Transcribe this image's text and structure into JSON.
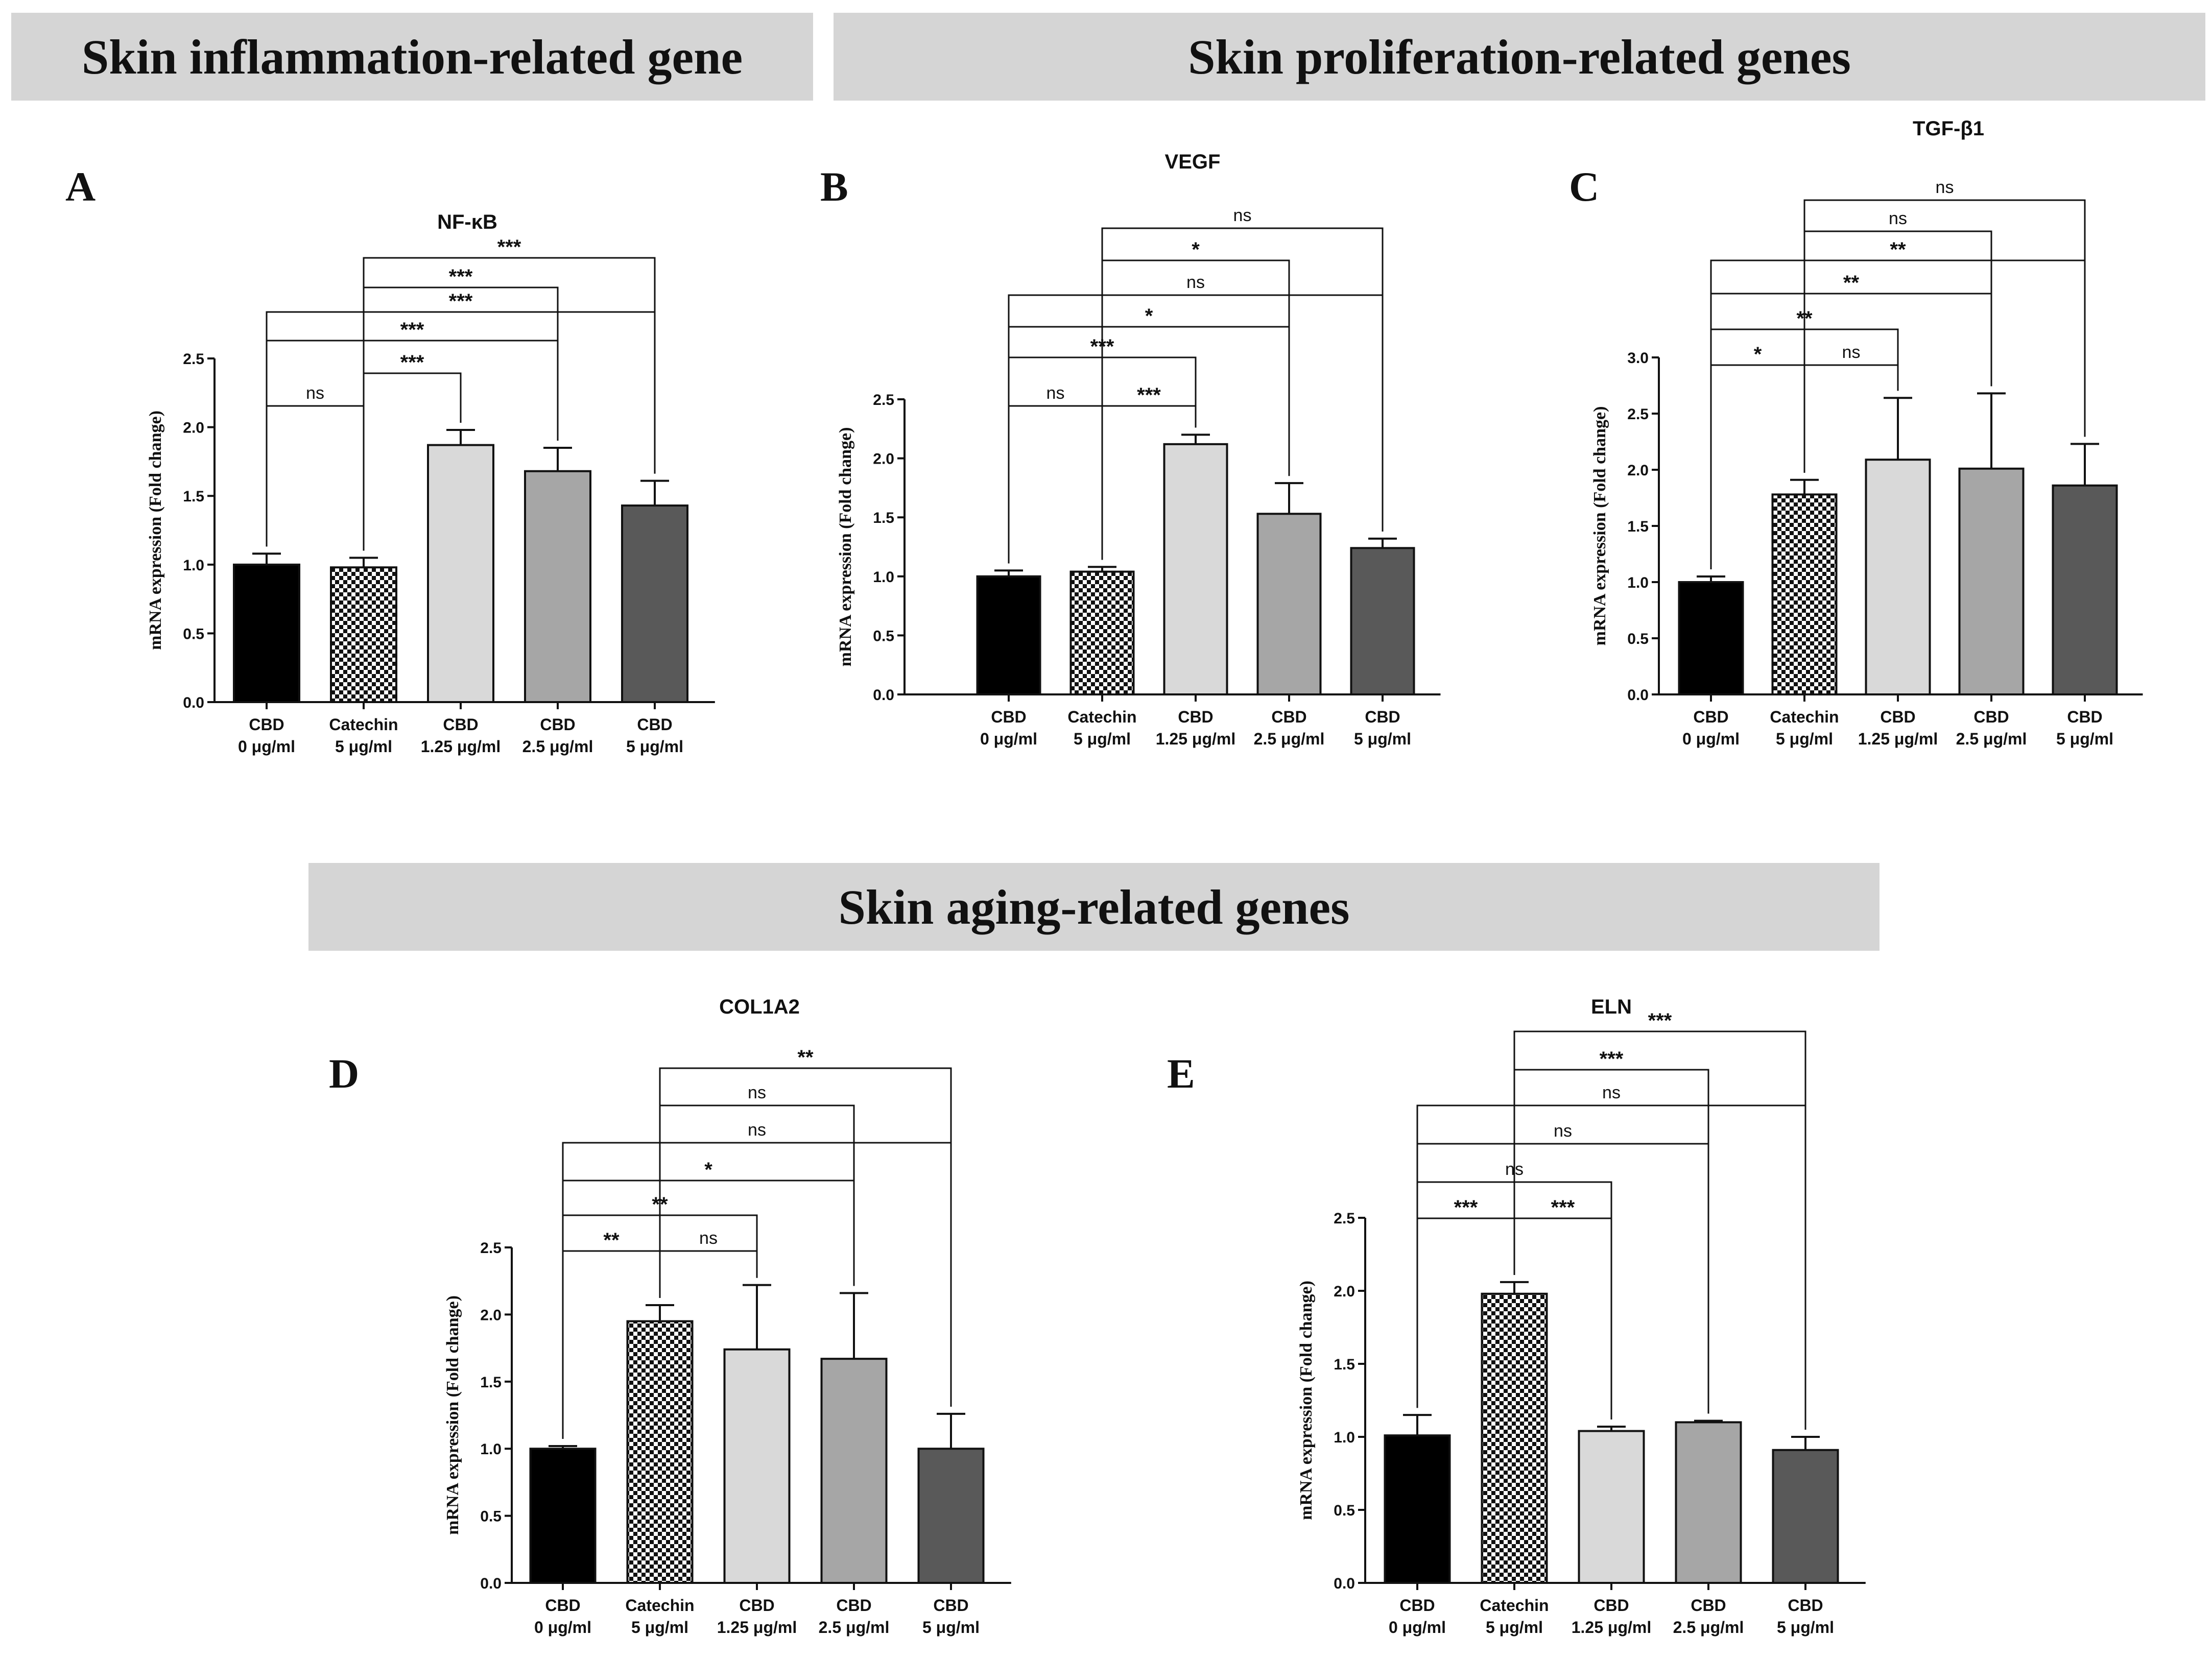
{
  "banners": {
    "inflammation": "Skin inflammation-related gene",
    "proliferation": "Skin proliferation-related genes",
    "aging": "Skin aging-related genes"
  },
  "colors": {
    "bar_black": "#000000",
    "bar_light": "#d9d9d9",
    "bar_mid": "#a6a6a6",
    "bar_dark": "#595959",
    "banner_bg": "#d5d5d5"
  },
  "chart_data": [
    {
      "panel": "A",
      "type": "bar",
      "title": "NF-κB",
      "ylabel": "mRNA expression (Fold change)",
      "ylim": [
        0,
        2.5
      ],
      "yticks": [
        "0.0",
        "0.5",
        "1.0",
        "1.5",
        "2.0",
        "2.5"
      ],
      "categories": [
        [
          "CBD",
          "0 μg/ml"
        ],
        [
          "Catechin",
          "5 μg/ml"
        ],
        [
          "CBD",
          "1.25 μg/ml"
        ],
        [
          "CBD",
          "2.5 μg/ml"
        ],
        [
          "CBD",
          "5 μg/ml"
        ]
      ],
      "values": [
        1.0,
        0.98,
        1.87,
        1.68,
        1.43
      ],
      "errors": [
        0.08,
        0.07,
        0.11,
        0.17,
        0.18
      ],
      "comparisons": [
        {
          "from": 0,
          "to": 1,
          "label": "ns"
        },
        {
          "from": 1,
          "to": 2,
          "label": "***"
        },
        {
          "from": 0,
          "to": 3,
          "label": "***"
        },
        {
          "from": 0,
          "to": 4,
          "label": "***"
        },
        {
          "from": 1,
          "to": 3,
          "label": "***"
        },
        {
          "from": 1,
          "to": 4,
          "label": "***"
        }
      ]
    },
    {
      "panel": "B",
      "type": "bar",
      "title": "VEGF",
      "ylabel": "mRNA expression (Fold change)",
      "ylim": [
        0,
        2.5
      ],
      "yticks": [
        "0.0",
        "0.5",
        "1.0",
        "1.5",
        "2.0",
        "2.5"
      ],
      "categories": [
        [
          "CBD",
          "0 μg/ml"
        ],
        [
          "Catechin",
          "5 μg/ml"
        ],
        [
          "CBD",
          "1.25 μg/ml"
        ],
        [
          "CBD",
          "2.5 μg/ml"
        ],
        [
          "CBD",
          "5 μg/ml"
        ]
      ],
      "values": [
        1.0,
        1.04,
        2.12,
        1.53,
        1.24
      ],
      "errors": [
        0.05,
        0.04,
        0.08,
        0.26,
        0.08
      ],
      "comparisons": [
        {
          "from": 0,
          "to": 1,
          "label": "ns"
        },
        {
          "from": 1,
          "to": 2,
          "label": "***"
        },
        {
          "from": 0,
          "to": 2,
          "label": "***"
        },
        {
          "from": 0,
          "to": 3,
          "label": "*"
        },
        {
          "from": 0,
          "to": 4,
          "label": "ns"
        },
        {
          "from": 1,
          "to": 3,
          "label": "*"
        },
        {
          "from": 1,
          "to": 4,
          "label": "ns"
        }
      ]
    },
    {
      "panel": "C",
      "type": "bar",
      "title": "TGF-β1",
      "ylabel": "mRNA expression (Fold change)",
      "ylim": [
        0,
        3.0
      ],
      "yticks": [
        "0.0",
        "0.5",
        "1.0",
        "1.5",
        "2.0",
        "2.5",
        "3.0"
      ],
      "categories": [
        [
          "CBD",
          "0 μg/ml"
        ],
        [
          "Catechin",
          "5 μg/ml"
        ],
        [
          "CBD",
          "1.25 μg/ml"
        ],
        [
          "CBD",
          "2.5 μg/ml"
        ],
        [
          "CBD",
          "5 μg/ml"
        ]
      ],
      "values": [
        1.0,
        1.78,
        2.09,
        2.01,
        1.86
      ],
      "errors": [
        0.05,
        0.13,
        0.55,
        0.67,
        0.37
      ],
      "comparisons": [
        {
          "from": 0,
          "to": 1,
          "label": "*"
        },
        {
          "from": 1,
          "to": 2,
          "label": "ns"
        },
        {
          "from": 0,
          "to": 2,
          "label": "**"
        },
        {
          "from": 0,
          "to": 3,
          "label": "**"
        },
        {
          "from": 0,
          "to": 4,
          "label": "**"
        },
        {
          "from": 1,
          "to": 3,
          "label": "ns"
        },
        {
          "from": 1,
          "to": 4,
          "label": "ns"
        }
      ]
    },
    {
      "panel": "D",
      "type": "bar",
      "title": "COL1A2",
      "ylabel": "mRNA expression (Fold change)",
      "ylim": [
        0,
        2.5
      ],
      "yticks": [
        "0.0",
        "0.5",
        "1.0",
        "1.5",
        "2.0",
        "2.5"
      ],
      "categories": [
        [
          "CBD",
          "0 μg/ml"
        ],
        [
          "Catechin",
          "5 μg/ml"
        ],
        [
          "CBD",
          "1.25 μg/ml"
        ],
        [
          "CBD",
          "2.5 μg/ml"
        ],
        [
          "CBD",
          "5 μg/ml"
        ]
      ],
      "values": [
        1.0,
        1.95,
        1.74,
        1.67,
        1.0
      ],
      "errors": [
        0.02,
        0.12,
        0.48,
        0.49,
        0.26
      ],
      "comparisons": [
        {
          "from": 0,
          "to": 1,
          "label": "**"
        },
        {
          "from": 1,
          "to": 2,
          "label": "ns"
        },
        {
          "from": 0,
          "to": 2,
          "label": "**"
        },
        {
          "from": 0,
          "to": 3,
          "label": "*"
        },
        {
          "from": 0,
          "to": 4,
          "label": "ns"
        },
        {
          "from": 1,
          "to": 3,
          "label": "ns"
        },
        {
          "from": 1,
          "to": 4,
          "label": "**"
        }
      ]
    },
    {
      "panel": "E",
      "type": "bar",
      "title": "ELN",
      "ylabel": "mRNA expression (Fold change)",
      "ylim": [
        0,
        2.5
      ],
      "yticks": [
        "0.0",
        "0.5",
        "1.0",
        "1.5",
        "2.0",
        "2.5"
      ],
      "categories": [
        [
          "CBD",
          "0 μg/ml"
        ],
        [
          "Catechin",
          "5 μg/ml"
        ],
        [
          "CBD",
          "1.25 μg/ml"
        ],
        [
          "CBD",
          "2.5 μg/ml"
        ],
        [
          "CBD",
          "5 μg/ml"
        ]
      ],
      "values": [
        1.01,
        1.98,
        1.04,
        1.1,
        0.91
      ],
      "errors": [
        0.14,
        0.08,
        0.03,
        0.01,
        0.09
      ],
      "comparisons": [
        {
          "from": 0,
          "to": 1,
          "label": "***"
        },
        {
          "from": 1,
          "to": 2,
          "label": "***"
        },
        {
          "from": 0,
          "to": 2,
          "label": "ns"
        },
        {
          "from": 0,
          "to": 3,
          "label": "ns"
        },
        {
          "from": 0,
          "to": 4,
          "label": "ns"
        },
        {
          "from": 1,
          "to": 3,
          "label": "***"
        },
        {
          "from": 1,
          "to": 4,
          "label": "***"
        }
      ]
    }
  ]
}
